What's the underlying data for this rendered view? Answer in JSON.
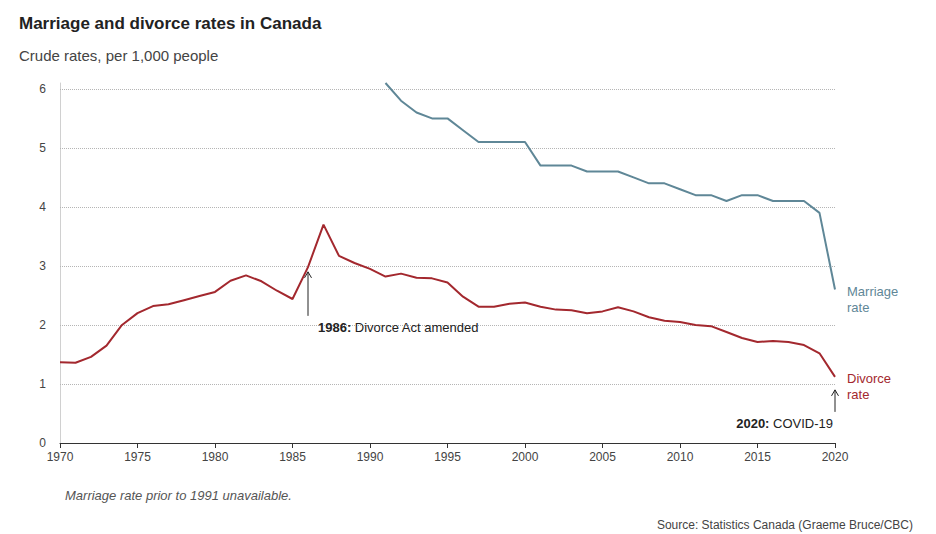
{
  "chart_data": {
    "type": "line",
    "title": "Marriage and divorce rates in Canada",
    "subtitle": "Crude rates, per 1,000 people",
    "note": "Marriage rate prior to 1991 unavailable.",
    "source": "Source: Statistics Canada (Graeme Bruce/CBC)",
    "x": [
      1970,
      1971,
      1972,
      1973,
      1974,
      1975,
      1976,
      1977,
      1978,
      1979,
      1980,
      1981,
      1982,
      1983,
      1984,
      1985,
      1986,
      1987,
      1988,
      1989,
      1990,
      1991,
      1992,
      1993,
      1994,
      1995,
      1996,
      1997,
      1998,
      1999,
      2000,
      2001,
      2002,
      2003,
      2004,
      2005,
      2006,
      2007,
      2008,
      2009,
      2010,
      2011,
      2012,
      2013,
      2014,
      2015,
      2016,
      2017,
      2018,
      2019,
      2020
    ],
    "series": [
      {
        "name": "Marriage rate",
        "color": "#5f8797",
        "values": [
          null,
          null,
          null,
          null,
          null,
          null,
          null,
          null,
          null,
          null,
          null,
          null,
          null,
          null,
          null,
          null,
          null,
          null,
          null,
          null,
          null,
          6.1,
          5.8,
          5.6,
          5.5,
          5.5,
          5.3,
          5.1,
          5.1,
          5.1,
          5.1,
          4.7,
          4.7,
          4.7,
          4.6,
          4.6,
          4.6,
          4.5,
          4.4,
          4.4,
          4.3,
          4.2,
          4.2,
          4.1,
          4.2,
          4.2,
          4.1,
          4.1,
          4.1,
          3.9,
          2.6
        ]
      },
      {
        "name": "Divorce rate",
        "color": "#a3282e",
        "values": [
          1.37,
          1.36,
          1.46,
          1.65,
          2.0,
          2.2,
          2.32,
          2.35,
          2.42,
          2.49,
          2.56,
          2.75,
          2.84,
          2.74,
          2.58,
          2.44,
          2.98,
          3.7,
          3.17,
          3.05,
          2.95,
          2.82,
          2.87,
          2.8,
          2.79,
          2.72,
          2.48,
          2.31,
          2.31,
          2.36,
          2.38,
          2.31,
          2.26,
          2.25,
          2.2,
          2.23,
          2.3,
          2.23,
          2.13,
          2.07,
          2.05,
          2.0,
          1.98,
          1.88,
          1.78,
          1.71,
          1.73,
          1.71,
          1.66,
          1.52,
          1.12
        ]
      }
    ],
    "annotations": [
      {
        "x": 1986,
        "y": 2.9,
        "bold": "1986:",
        "text": "Divorce Act amended"
      },
      {
        "x": 2020,
        "y": 0.9,
        "bold": "2020:",
        "text": "COVID-19"
      }
    ],
    "xlim": [
      1970,
      2020
    ],
    "xticks": [
      1970,
      1975,
      1980,
      1985,
      1990,
      1995,
      2000,
      2005,
      2010,
      2015,
      2020
    ],
    "ylim": [
      0,
      6.1
    ],
    "yticks": [
      0,
      1,
      2,
      3,
      4,
      5,
      6
    ],
    "grid": true,
    "legend": false
  }
}
